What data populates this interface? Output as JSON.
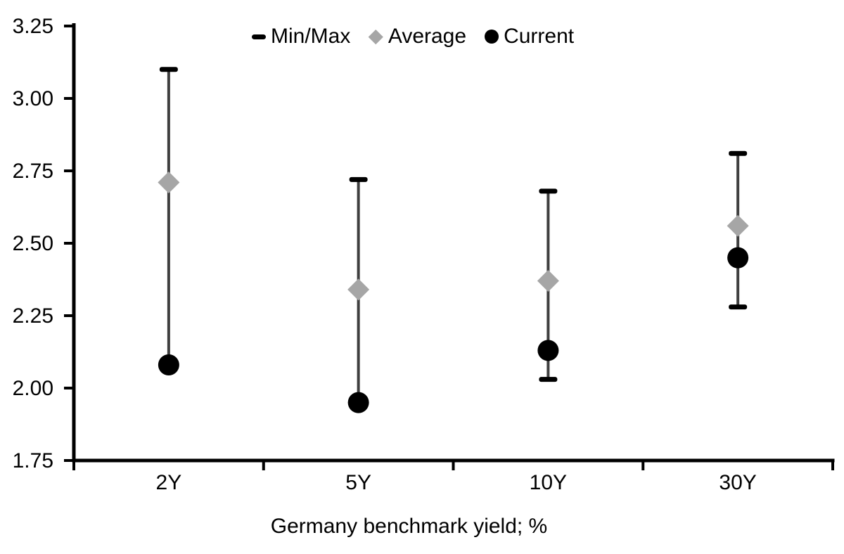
{
  "chart_data": {
    "type": "scatter",
    "subtype": "min-max-range-with-average-and-current",
    "title": "",
    "xlabel": "Germany benchmark yield; %",
    "ylabel": "",
    "categories": [
      "2Y",
      "5Y",
      "10Y",
      "30Y"
    ],
    "ylim": [
      1.75,
      3.25
    ],
    "ytick_step": 0.25,
    "ytick_labels": [
      "3.25",
      "3.00",
      "2.75",
      "2.50",
      "2.25",
      "2.00",
      "1.75"
    ],
    "yticks": [
      3.25,
      3.0,
      2.75,
      2.5,
      2.25,
      2.0,
      1.75
    ],
    "grid": false,
    "legend_position": "top-center",
    "legend": [
      {
        "label": "Min/Max",
        "marker": "dash",
        "color": "#000000"
      },
      {
        "label": "Average",
        "marker": "diamond",
        "color": "#a6a6a6"
      },
      {
        "label": "Current",
        "marker": "circle",
        "color": "#000000"
      }
    ],
    "series": [
      {
        "name": "Min",
        "values": [
          2.08,
          1.95,
          2.03,
          2.28
        ]
      },
      {
        "name": "Max",
        "values": [
          3.1,
          2.72,
          2.68,
          2.81
        ]
      },
      {
        "name": "Average",
        "values": [
          2.71,
          2.34,
          2.37,
          2.56
        ]
      },
      {
        "name": "Current",
        "values": [
          2.08,
          1.95,
          2.13,
          2.45
        ]
      }
    ],
    "colors": {
      "range_line": "#3f3f3f",
      "cap": "#000000",
      "average": "#a6a6a6",
      "current": "#000000",
      "axis": "#000000",
      "text": "#000000",
      "background": "#ffffff"
    }
  }
}
